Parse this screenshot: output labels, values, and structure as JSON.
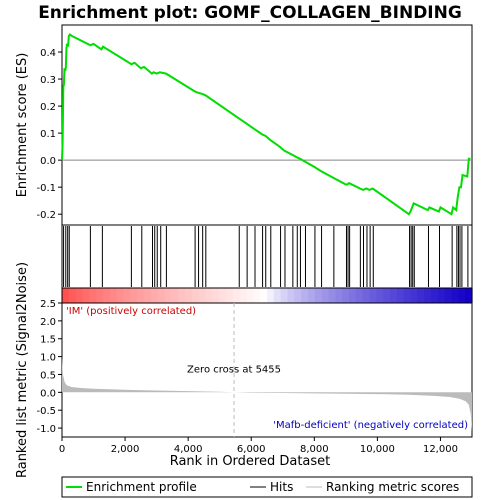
{
  "colors": {
    "enrichment_line": "#00dd00",
    "hits": "#000000",
    "ranking_fill": "#bbbbbb",
    "positive_text": "#cc0000",
    "negative_text": "#0000bb",
    "zero_line": "#888888",
    "zero_cross_line": "#bbbbbb"
  },
  "chart_data": [
    {
      "type": "line",
      "title": "Enrichment plot: GOMF_COLLAGEN_BINDING",
      "ylabel": "Enrichment score (ES)",
      "xlim": [
        0,
        13000
      ],
      "ylim": [
        -0.24,
        0.5
      ],
      "yticks": [
        -0.2,
        -0.1,
        0.0,
        0.1,
        0.2,
        0.3,
        0.4
      ],
      "ytick_labels": [
        "-0.2",
        "-0.1",
        "0.0",
        "0.1",
        "0.2",
        "0.3",
        "0.4"
      ],
      "series": [
        {
          "name": "Enrichment profile",
          "x": [
            0,
            20,
            40,
            60,
            80,
            100,
            120,
            140,
            160,
            190,
            220,
            250,
            300,
            900,
            1000,
            1250,
            1300,
            2200,
            2300,
            2500,
            2600,
            2850,
            2900,
            3000,
            3100,
            3300,
            4200,
            4300,
            4450,
            4550,
            5600,
            5850,
            6100,
            6350,
            6450,
            6600,
            6900,
            7050,
            7300,
            7450,
            7550,
            7700,
            8000,
            8200,
            8600,
            9000,
            9050,
            9100,
            9450,
            9550,
            9650,
            9750,
            9850,
            11000,
            11050,
            11100,
            11150,
            11600,
            11650,
            11950,
            12000,
            12350,
            12400,
            12500,
            12550,
            12600,
            12650,
            12700,
            12850,
            12900,
            12950
          ],
          "y": [
            0.0,
            0.06,
            0.27,
            0.28,
            0.34,
            0.33,
            0.34,
            0.41,
            0.43,
            0.42,
            0.46,
            0.465,
            0.46,
            0.425,
            0.43,
            0.41,
            0.42,
            0.355,
            0.36,
            0.34,
            0.345,
            0.32,
            0.325,
            0.32,
            0.325,
            0.32,
            0.255,
            0.25,
            0.245,
            0.24,
            0.155,
            0.135,
            0.115,
            0.095,
            0.09,
            0.075,
            0.05,
            0.035,
            0.02,
            0.01,
            0.005,
            -0.005,
            -0.025,
            -0.04,
            -0.065,
            -0.09,
            -0.09,
            -0.085,
            -0.105,
            -0.11,
            -0.105,
            -0.11,
            -0.105,
            -0.2,
            -0.19,
            -0.175,
            -0.16,
            -0.185,
            -0.175,
            -0.19,
            -0.175,
            -0.2,
            -0.175,
            -0.185,
            -0.135,
            -0.1,
            -0.1,
            -0.055,
            -0.06,
            0.005,
            0.005
          ]
        }
      ],
      "legend": [
        {
          "label": "Enrichment profile"
        },
        {
          "label": "Hits"
        },
        {
          "label": "Ranking metric scores"
        }
      ],
      "legend_position": "bottom"
    },
    {
      "type": "bar",
      "name": "Hits",
      "hit_positions": [
        50,
        120,
        180,
        230,
        900,
        1280,
        2200,
        2530,
        2870,
        2940,
        3020,
        3130,
        3310,
        4220,
        4330,
        4460,
        4560,
        5620,
        5870,
        6120,
        6360,
        6460,
        6620,
        6930,
        7070,
        7320,
        7460,
        7560,
        7720,
        8020,
        8230,
        8620,
        9020,
        9070,
        9120,
        9460,
        9560,
        9670,
        9770,
        9870,
        11020,
        11070,
        11120,
        11170,
        11620,
        11970,
        12370,
        12520,
        12570,
        12620,
        12680,
        12870
      ]
    },
    {
      "type": "area",
      "ylabel": "Ranked list metric (Signal2Noise)",
      "xlabel": "Rank in Ordered Dataset",
      "xlim": [
        0,
        13000
      ],
      "ylim": [
        -1.25,
        2.5
      ],
      "xticks": [
        0,
        2000,
        4000,
        6000,
        8000,
        10000,
        12000
      ],
      "xtick_labels": [
        "0",
        "2,000",
        "4,000",
        "6,000",
        "8,000",
        "10,000",
        "12,000"
      ],
      "yticks": [
        -1.0,
        -0.5,
        0.0,
        0.5,
        1.0,
        1.5,
        2.0,
        2.5
      ],
      "ytick_labels": [
        "-1.0",
        "-0.5",
        "0.0",
        "0.5",
        "1.0",
        "1.5",
        "2.0",
        "2.5"
      ],
      "x": [
        0,
        30,
        80,
        150,
        300,
        600,
        1000,
        2000,
        3000,
        4000,
        5000,
        5455,
        6000,
        7000,
        8000,
        9000,
        10000,
        11000,
        11800,
        12300,
        12600,
        12800,
        12900,
        12960,
        13000
      ],
      "y": [
        1.0,
        0.5,
        0.3,
        0.2,
        0.15,
        0.12,
        0.1,
        0.07,
        0.05,
        0.035,
        0.015,
        0.0,
        -0.01,
        -0.02,
        -0.03,
        -0.04,
        -0.05,
        -0.07,
        -0.1,
        -0.13,
        -0.18,
        -0.25,
        -0.35,
        -0.6,
        -1.1
      ],
      "annotations": {
        "zero_cross": "Zero cross at 5455",
        "zero_cross_rank": 5455,
        "positive": "'IM' (positively correlated)",
        "negative": "'Mafb-deficient' (negatively correlated)"
      }
    }
  ]
}
